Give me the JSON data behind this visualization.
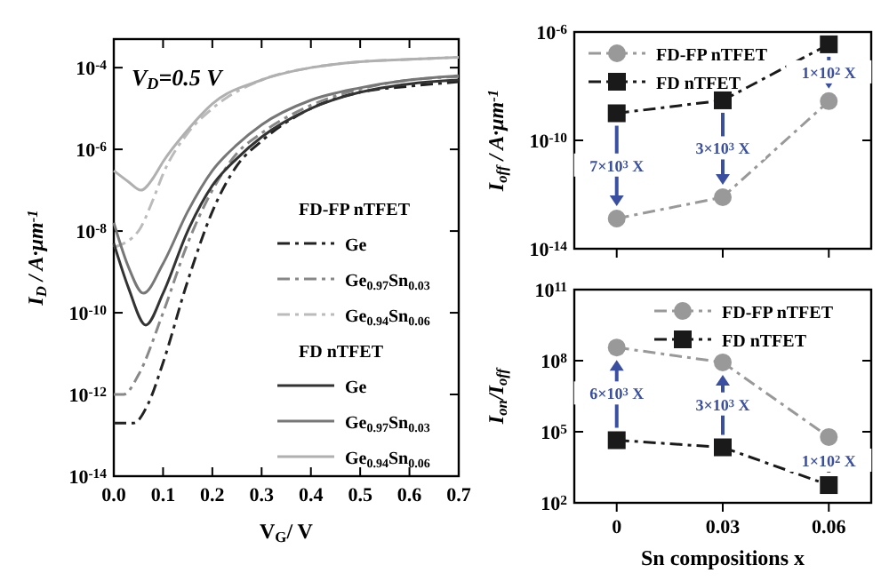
{
  "chart_data": [
    {
      "type": "line",
      "xlabel": "V$_{G}$/ V",
      "ylabel": "I$_{D}$ / A·μm$^{-1}$",
      "log": true,
      "legend": "right",
      "annotations": [
        "V$_{D}$=0.5 V",
        "FD-FP nTFET",
        "FD nTFET"
      ],
      "xlim": [
        0,
        0.7
      ],
      "ylim": [
        1e-14,
        0.0005
      ],
      "xticks": [
        {
          "value": 0,
          "label": "0.0"
        },
        {
          "value": 0.1,
          "label": "0.1"
        },
        {
          "value": 0.2,
          "label": "0.2"
        },
        {
          "value": 0.3,
          "label": "0.3"
        },
        {
          "value": 0.4,
          "label": "0.4"
        },
        {
          "value": 0.5,
          "label": "0.5"
        },
        {
          "value": 0.6,
          "label": "0.6"
        },
        {
          "value": 0.7,
          "label": "0.7"
        }
      ],
      "yticks": [
        {
          "value": 1e-14,
          "label": "10$^{-14}$"
        },
        {
          "value": 1e-12,
          "label": "10$^{-12}$"
        },
        {
          "value": 1e-10,
          "label": "10$^{-10}$"
        },
        {
          "value": 1e-08,
          "label": "10$^{-8}$"
        },
        {
          "value": 1e-06,
          "label": "10$^{-6}$"
        },
        {
          "value": 0.0001,
          "label": "10$^{-4}$"
        }
      ],
      "series": [
        {
          "name": "Ge",
          "color": "#222222",
          "line_style": "dashed",
          "x": [
            0,
            0.04,
            0.07,
            0.1,
            0.15,
            0.2,
            0.25,
            0.3,
            0.4,
            0.5,
            0.6,
            0.7
          ],
          "values": [
            2e-13,
            2e-13,
            6e-13,
            6e-12,
            6e-10,
            3e-08,
            4e-07,
            1.6e-06,
            1e-05,
            2.5e-05,
            3.5e-05,
            4.5e-05
          ]
        },
        {
          "name": "Ge$_{0.97}$Sn$_{0.03}$",
          "color": "#888888",
          "line_style": "dashed",
          "x": [
            0,
            0.02,
            0.05,
            0.1,
            0.15,
            0.2,
            0.25,
            0.3,
            0.4,
            0.5,
            0.6,
            0.7
          ],
          "values": [
            1e-12,
            1e-12,
            3e-12,
            1e-10,
            5e-09,
            1e-07,
            8e-07,
            2.5e-06,
            1.2e-05,
            3e-05,
            5e-05,
            6e-05
          ]
        },
        {
          "name": "Ge$_{0.94}$Sn$_{0.06}$",
          "color": "#bbbbbb",
          "line_style": "dashed",
          "x": [
            0,
            0.05,
            0.08,
            0.1,
            0.15,
            0.2,
            0.3,
            0.4,
            0.5,
            0.6,
            0.7
          ],
          "values": [
            4e-09,
            1e-08,
            6e-08,
            2.5e-07,
            2.5e-06,
            1e-05,
            5e-05,
            0.0001,
            0.00014,
            0.00016,
            0.00018
          ]
        },
        {
          "name": "Ge",
          "color": "#333333",
          "line_style": "solid",
          "x": [
            0,
            0.03,
            0.065,
            0.1,
            0.15,
            0.2,
            0.25,
            0.3,
            0.4,
            0.5,
            0.6,
            0.7
          ],
          "values": [
            5e-09,
            4e-10,
            5e-11,
            3e-10,
            1e-08,
            1.3e-07,
            6e-07,
            2e-06,
            1e-05,
            2.5e-05,
            4e-05,
            5e-05
          ]
        },
        {
          "name": "Ge$_{0.97}$Sn$_{0.03}$",
          "color": "#777777",
          "line_style": "solid",
          "x": [
            0,
            0.03,
            0.06,
            0.1,
            0.15,
            0.2,
            0.25,
            0.3,
            0.4,
            0.5,
            0.6,
            0.7
          ],
          "values": [
            1.6e-08,
            1.3e-09,
            3e-10,
            1.6e-09,
            3e-08,
            3e-07,
            1.3e-06,
            4e-06,
            1.6e-05,
            3.2e-05,
            5e-05,
            6.3e-05
          ]
        },
        {
          "name": "Ge$_{0.94}$Sn$_{0.06}$",
          "color": "#b0b0b0",
          "line_style": "solid",
          "x": [
            0,
            0.03,
            0.055,
            0.08,
            0.1,
            0.15,
            0.2,
            0.3,
            0.4,
            0.5,
            0.6,
            0.7
          ],
          "values": [
            3e-07,
            1.6e-07,
            1e-07,
            2e-07,
            5e-07,
            3e-06,
            1.3e-05,
            5e-05,
            0.0001,
            0.00014,
            0.00016,
            0.00018
          ]
        }
      ]
    },
    {
      "type": "line",
      "ylabel": "I$_{off}$ / A·μm$^{-1}$",
      "log": true,
      "legend": "top left",
      "tick_labels": "y",
      "categories": [
        "0",
        "0.03",
        "0.06"
      ],
      "ylim": [
        1e-14,
        1e-06
      ],
      "yticks": [
        {
          "value": 1e-14,
          "label": "10$^{-14}$"
        },
        {
          "value": 1e-10,
          "label": "10$^{-10}$"
        },
        {
          "value": 1e-06,
          "label": "10$^{-6}$"
        }
      ],
      "annotations": [
        {
          "text": "7×10$^{3}$ X",
          "x": "0",
          "y": 1.3e-13
        },
        {
          "text": "3×10$^{3}$ X",
          "x": "0.03",
          "y": 8e-13
        },
        {
          "text": "1×10$^{2}$ X",
          "x": "0.06",
          "y": 2.8e-09
        }
      ],
      "series": [
        {
          "name": "FD-FP nTFET",
          "color": "#999999",
          "line_style": "dashed",
          "marker": "circle",
          "values": [
            1.3e-13,
            8e-13,
            2.8e-09
          ]
        },
        {
          "name": "FD nTFET",
          "color": "#1a1a1a",
          "line_style": "dashed",
          "marker": "square",
          "values": [
            1e-09,
            3e-09,
            3.5e-07
          ]
        }
      ]
    },
    {
      "type": "line",
      "xlabel": "Sn compositions x",
      "ylabel": "I$_{on}$/I$_{off}$",
      "log": true,
      "legend": "top right",
      "categories": [
        "0",
        "0.03",
        "0.06"
      ],
      "ylim": [
        100,
        100000000000.0
      ],
      "yticks": [
        {
          "value": 100,
          "label": "10$^{2}$"
        },
        {
          "value": 100000.0,
          "label": "10$^{5}$"
        },
        {
          "value": 100000000.0,
          "label": "10$^{8}$"
        },
        {
          "value": 100000000000.0,
          "label": "10$^{11}$"
        }
      ],
      "annotations": [
        {
          "text": "6×10$^{3}$ X",
          "x": "0",
          "y": 360000000.0
        },
        {
          "text": "3×10$^{3}$ X",
          "x": "0.03",
          "y": 85000000.0
        },
        {
          "text": "1×10$^{2}$ X",
          "x": "0.06",
          "y": 60000.0
        }
      ],
      "series": [
        {
          "name": "FD-FP nTFET",
          "color": "#999999",
          "line_style": "dashed",
          "marker": "circle",
          "values": [
            360000000.0,
            85000000.0,
            60000.0
          ]
        },
        {
          "name": "FD nTFET",
          "color": "#1a1a1a",
          "line_style": "dashed",
          "marker": "square",
          "values": [
            44000.0,
            22000.0,
            560
          ]
        }
      ]
    }
  ]
}
